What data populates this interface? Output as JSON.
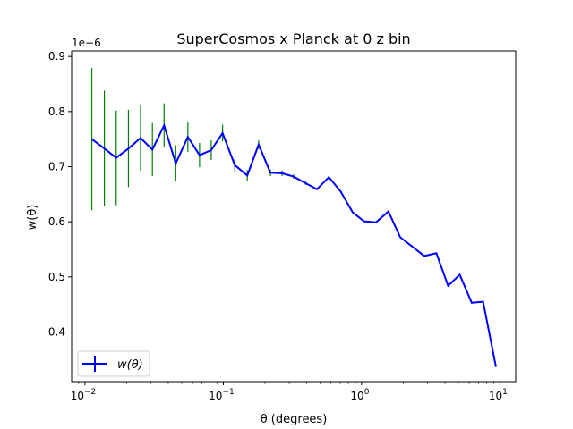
{
  "chart_data": {
    "type": "line",
    "title": "SuperCosmos x Planck at 0 z bin",
    "xlabel": "θ (degrees)",
    "ylabel": "w(θ)",
    "y_offset_text": "1e−6",
    "xscale": "log",
    "xlim": [
      0.008,
      13
    ],
    "ylim": [
      0.31,
      0.91
    ],
    "x_ticks": [
      {
        "value": 0.01,
        "base": "10",
        "exp": "−2"
      },
      {
        "value": 0.1,
        "base": "10",
        "exp": "−1"
      },
      {
        "value": 1,
        "base": "10",
        "exp": "0"
      },
      {
        "value": 10,
        "base": "10",
        "exp": "1"
      }
    ],
    "y_ticks": [
      {
        "value": 0.4,
        "label": "0.4"
      },
      {
        "value": 0.5,
        "label": "0.5"
      },
      {
        "value": 0.6,
        "label": "0.6"
      },
      {
        "value": 0.7,
        "label": "0.7"
      },
      {
        "value": 0.8,
        "label": "0.8"
      },
      {
        "value": 0.9,
        "label": "0.9"
      }
    ],
    "grid": false,
    "legend": {
      "placement": "lower-left",
      "entries": [
        "w(θ)"
      ]
    },
    "series": [
      {
        "name": "w(θ)",
        "color": "#0000ff",
        "error_color": "#008000",
        "x": [
          0.0112,
          0.0138,
          0.0168,
          0.0206,
          0.0252,
          0.0307,
          0.0373,
          0.0453,
          0.0554,
          0.0673,
          0.0817,
          0.0988,
          0.121,
          0.149,
          0.18,
          0.219,
          0.266,
          0.322,
          0.394,
          0.475,
          0.58,
          0.705,
          0.862,
          1.04,
          1.27,
          1.56,
          1.9,
          2.84,
          3.47,
          4.22,
          5.12,
          6.25,
          7.56,
          9.35
        ],
        "y": [
          0.75,
          0.733,
          0.716,
          0.733,
          0.752,
          0.731,
          0.775,
          0.706,
          0.754,
          0.721,
          0.73,
          0.761,
          0.703,
          0.684,
          0.74,
          0.689,
          0.688,
          0.682,
          0.67,
          0.659,
          0.681,
          0.655,
          0.617,
          0.601,
          0.599,
          0.619,
          0.572,
          0.538,
          0.543,
          0.484,
          0.504,
          0.453,
          0.455,
          0.337
        ],
        "yerr": [
          0.129,
          0.105,
          0.086,
          0.07,
          0.059,
          0.048,
          0.04,
          0.033,
          0.027,
          0.022,
          0.018,
          0.015,
          0.012,
          0.01,
          0.008,
          0.006,
          0.005,
          0.004,
          0.003,
          0.002,
          0.002,
          0.001,
          0.001,
          0.001,
          0.001,
          0.001,
          0.001,
          0.001,
          0.001,
          0.001,
          0.001,
          0.001,
          0.001,
          0.001
        ]
      }
    ]
  }
}
